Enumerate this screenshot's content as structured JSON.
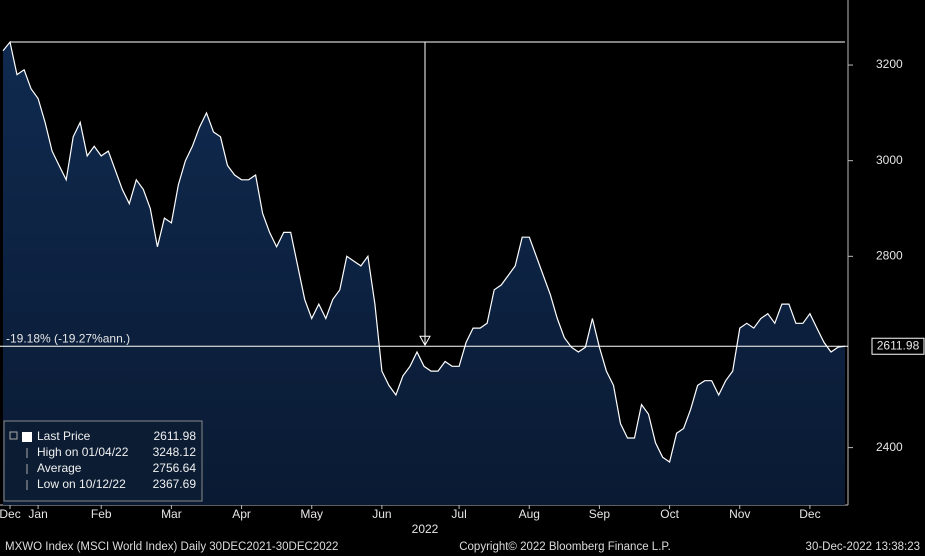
{
  "chart_data": {
    "type": "area",
    "categories": [
      null,
      "Dec",
      null,
      null,
      null,
      "Jan",
      null,
      null,
      null,
      null,
      null,
      null,
      null,
      null,
      "Feb",
      null,
      null,
      null,
      null,
      null,
      null,
      null,
      null,
      null,
      "Mar",
      null,
      null,
      null,
      null,
      null,
      null,
      null,
      null,
      null,
      "Apr",
      null,
      null,
      null,
      null,
      null,
      null,
      null,
      null,
      null,
      "May",
      null,
      null,
      null,
      null,
      null,
      null,
      null,
      null,
      null,
      "Jun",
      null,
      null,
      null,
      null,
      null,
      null,
      null,
      null,
      null,
      null,
      "Jul",
      null,
      null,
      null,
      null,
      null,
      null,
      null,
      null,
      null,
      "Aug",
      null,
      null,
      null,
      null,
      null,
      null,
      null,
      null,
      null,
      "Sep",
      null,
      null,
      null,
      null,
      null,
      null,
      null,
      null,
      null,
      "Oct",
      null,
      null,
      null,
      null,
      null,
      null,
      null,
      null,
      null,
      "Nov",
      null,
      null,
      null,
      null,
      null,
      null,
      null,
      null,
      null,
      "Dec",
      null,
      null,
      null,
      null,
      null
    ],
    "series": [
      {
        "name": "Last Price",
        "color": "#ffffff",
        "values": [
          3230,
          3248,
          3180,
          3190,
          3150,
          3130,
          3080,
          3020,
          2990,
          2960,
          3050,
          3080,
          3010,
          3030,
          3010,
          3020,
          2980,
          2940,
          2910,
          2960,
          2940,
          2900,
          2820,
          2880,
          2870,
          2950,
          3000,
          3030,
          3070,
          3100,
          3060,
          3050,
          2990,
          2970,
          2960,
          2960,
          2970,
          2890,
          2850,
          2820,
          2850,
          2850,
          2780,
          2710,
          2670,
          2700,
          2670,
          2710,
          2730,
          2800,
          2790,
          2780,
          2800,
          2700,
          2560,
          2530,
          2510,
          2550,
          2570,
          2600,
          2570,
          2560,
          2560,
          2580,
          2570,
          2570,
          2620,
          2650,
          2650,
          2660,
          2730,
          2740,
          2760,
          2780,
          2840,
          2840,
          2800,
          2760,
          2720,
          2670,
          2630,
          2610,
          2600,
          2610,
          2670,
          2610,
          2560,
          2530,
          2450,
          2420,
          2420,
          2490,
          2470,
          2410,
          2380,
          2370,
          2430,
          2440,
          2480,
          2530,
          2540,
          2540,
          2510,
          2540,
          2560,
          2650,
          2660,
          2650,
          2670,
          2680,
          2660,
          2700,
          2700,
          2660,
          2660,
          2680,
          2650,
          2620,
          2600,
          2610,
          2611.98
        ]
      }
    ],
    "ylim": [
      2280,
      3336
    ],
    "yticks": [
      2400,
      2800,
      3000,
      3200
    ],
    "x_label": "2022",
    "annotation": "-19.18% (-19.27%ann.)",
    "legend": [
      {
        "label": "Last Price",
        "value": 2611.98
      },
      {
        "label": "High on 01/04/22",
        "value": 3248.12
      },
      {
        "label": "Average",
        "value": 2756.64
      },
      {
        "label": "Low on 10/12/22",
        "value": 2367.69
      }
    ],
    "footer": {
      "left": "MXWO Index (MSCI World Index)  Daily 30DEC2021-30DEC2022",
      "center": "Copyright© 2022 Bloomberg Finance L.P.",
      "right": "30-Dec-2022 13:38:23"
    }
  }
}
